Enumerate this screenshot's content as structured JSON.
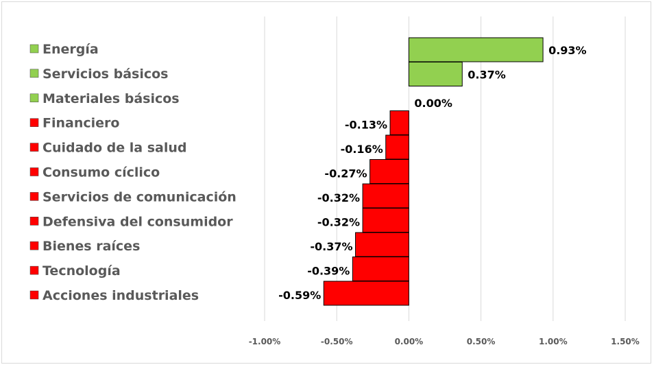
{
  "chart_data": {
    "type": "bar",
    "orientation": "horizontal",
    "title": "",
    "xlabel": "",
    "ylabel": "",
    "xlim": [
      -1.0,
      1.5
    ],
    "x_ticks": [
      -1.0,
      -0.5,
      0.0,
      0.5,
      1.0,
      1.5
    ],
    "x_tick_labels": [
      "-1.00%",
      "-0.50%",
      "0.00%",
      "0.50%",
      "1.00%",
      "1.50%"
    ],
    "grid": "vertical",
    "categories": [
      "Energía",
      "Servicios básicos",
      "Materiales básicos",
      "Financiero",
      "Cuidado de la salud",
      "Consumo cíclico",
      "Servicios de comunicación",
      "Defensiva del consumidor",
      "Bienes raíces",
      "Tecnología",
      "Acciones industriales"
    ],
    "values": [
      0.93,
      0.37,
      0.0,
      -0.13,
      -0.16,
      -0.27,
      -0.32,
      -0.32,
      -0.37,
      -0.39,
      -0.59
    ],
    "value_labels": [
      "0.93%",
      "0.37%",
      "0.00%",
      "-0.13%",
      "-0.16%",
      "-0.27%",
      "-0.32%",
      "-0.32%",
      "-0.37%",
      "-0.39%",
      "-0.59%"
    ],
    "colors": {
      "positive": "#92d050",
      "negative": "#ff0000",
      "bar_border": "#000000",
      "gridline": "#d9d9d9",
      "category_text": "#595959",
      "tick_text": "#595959"
    }
  }
}
